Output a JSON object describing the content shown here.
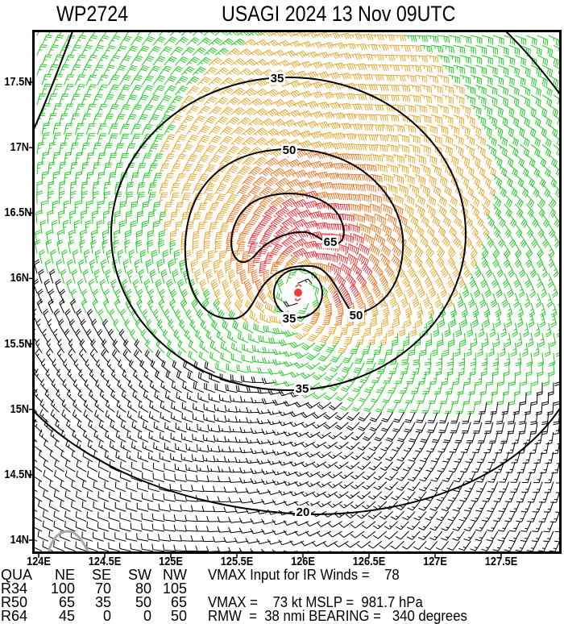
{
  "header": {
    "storm_id": "WP2724",
    "title": "USAGI 2024 13 Nov 09UTC"
  },
  "chart_data": {
    "type": "wind_barb_contour_map",
    "title": "USAGI 2024 13 Nov 09UTC",
    "subtitle": "WP2724",
    "xlabel": "Longitude",
    "ylabel": "Latitude",
    "x_ticks": [
      "124E",
      "124.5E",
      "125E",
      "125.5E",
      "126E",
      "126.5E",
      "127E",
      "127.5E"
    ],
    "x_tick_values": [
      124.0,
      124.5,
      125.0,
      125.5,
      126.0,
      126.5,
      127.0,
      127.5
    ],
    "y_ticks": [
      "17.5N",
      "17N",
      "16.5N",
      "16N",
      "15.5N",
      "15N",
      "14.5N",
      "14N"
    ],
    "y_tick_values": [
      17.5,
      17.0,
      16.5,
      16.0,
      15.5,
      15.0,
      14.5,
      14.0
    ],
    "xlim": [
      123.96,
      127.96
    ],
    "ylim": [
      13.9,
      17.87
    ],
    "storm_center": {
      "lon": 125.98,
      "lat": 15.9
    },
    "contours": [
      {
        "level": 20,
        "label": "20",
        "color": "#000000"
      },
      {
        "level": 35,
        "label": "35",
        "color": "#000000"
      },
      {
        "level": 50,
        "label": "50",
        "color": "#000000"
      },
      {
        "level": 65,
        "label": "65",
        "color": "#000000"
      }
    ],
    "barb_color_scale": [
      {
        "range": "<20 kt",
        "color": "#000000"
      },
      {
        "range": "20-34 kt",
        "color": "#22cc22"
      },
      {
        "range": "34-49 kt",
        "color": "#e8a830"
      },
      {
        "range": "50-63 kt",
        "color": "#f07a28"
      },
      {
        "range": ">=64 kt",
        "color": "#f03a40"
      }
    ],
    "wind_radii_table": {
      "columns": [
        "QUA",
        "NE",
        "SE",
        "SW",
        "NW"
      ],
      "rows": [
        {
          "label": "R34",
          "NE": 100,
          "SE": 70,
          "SW": 80,
          "NW": 105
        },
        {
          "label": "R50",
          "NE": 65,
          "SE": 35,
          "SW": 50,
          "NW": 65
        },
        {
          "label": "R64",
          "NE": 45,
          "SE": 0,
          "SW": 0,
          "NW": 50
        }
      ]
    },
    "parameters": {
      "vmax_input_ir": 78,
      "vmax_kt": 73,
      "mslp_hpa": 981.7,
      "rmw_nmi": 38,
      "bearing_deg": 340
    },
    "legend": null,
    "grid": false
  },
  "info": {
    "table_header": [
      "QUA",
      "NE",
      "SE",
      "SW",
      "NW"
    ],
    "rows": [
      {
        "label": "R34",
        "values": [
          "100",
          "70",
          "80",
          "105"
        ]
      },
      {
        "label": "R50",
        "values": [
          "65",
          "35",
          "50",
          "65"
        ]
      },
      {
        "label": "R64",
        "values": [
          "45",
          "0",
          "0",
          "50"
        ]
      }
    ],
    "line1": "VMAX Input for IR Winds =    78",
    "line3": "VMAX =    73 kt MSLP =  981.7 hPa",
    "line4": "RMW  =  38 nmi BEARING =   340 degrees"
  },
  "contour_labels": {
    "c35_north": "35",
    "c50_north": "50",
    "c65": "65",
    "c35_inner": "35",
    "c50_east": "50",
    "c35_south": "35",
    "c20": "20"
  }
}
